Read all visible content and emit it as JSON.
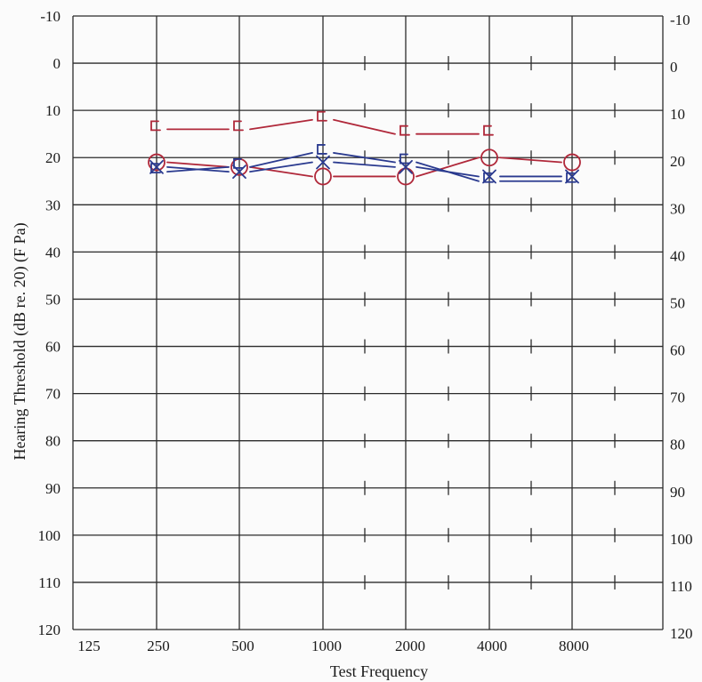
{
  "chart_data": {
    "type": "line",
    "title": "",
    "xlabel": "Test Frequency",
    "ylabel": "Hearing Threshold (dB re. 20) (F Pa)",
    "x_tick_labels": [
      "125",
      "250",
      "500",
      "1000",
      "2000",
      "4000",
      "8000"
    ],
    "y_tick_labels_left": [
      "-10",
      "0",
      "10",
      "20",
      "30",
      "40",
      "50",
      "60",
      "70",
      "80",
      "90",
      "100",
      "110",
      "120"
    ],
    "y_tick_labels_right": [
      "-10",
      "0",
      "10",
      "20",
      "30",
      "40",
      "50",
      "60",
      "70",
      "80",
      "90",
      "100",
      "110",
      "120"
    ],
    "ylim": [
      -10,
      120
    ],
    "y_inverted": true,
    "grid": true,
    "legend": "none",
    "colors": {
      "red": "#b0283a",
      "blue": "#2a3a8f",
      "grid": "#2b2b2b"
    },
    "series": [
      {
        "color": "red",
        "marker": "circle",
        "x": [
          250,
          500,
          1000,
          2000,
          4000,
          8000
        ],
        "y": [
          21,
          22,
          24,
          24,
          20,
          21
        ]
      },
      {
        "color": "blue",
        "marker": "x",
        "x": [
          250,
          500,
          1000,
          2000,
          4000,
          8000
        ],
        "y": [
          22,
          23,
          21,
          22,
          24,
          24
        ]
      },
      {
        "color": "blue",
        "marker": "bracket-bone",
        "x": [
          250,
          500,
          1000,
          2000,
          4000,
          8000
        ],
        "y": [
          23,
          22,
          19,
          21,
          25,
          25
        ]
      },
      {
        "color": "red",
        "marker": "bracket-bone",
        "x": [
          250,
          500,
          1000,
          2000,
          4000
        ],
        "y": [
          14,
          14,
          12,
          15,
          15
        ]
      }
    ]
  }
}
